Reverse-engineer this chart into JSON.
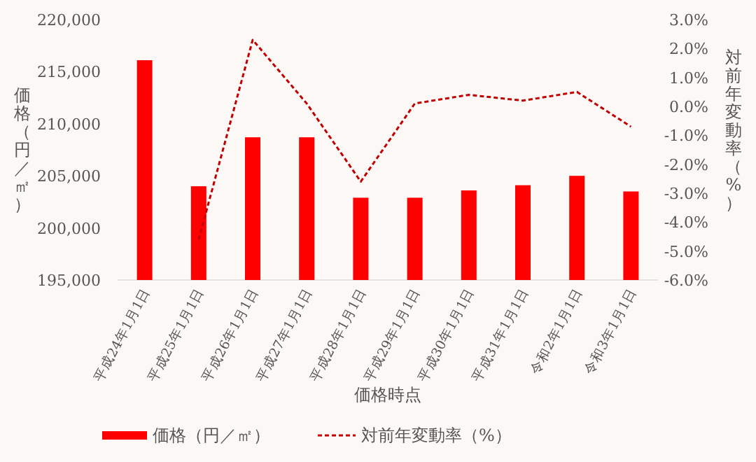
{
  "chart_data": {
    "type": "bar",
    "xlabel": "価格時点",
    "ylabel": "価格（円／㎡）",
    "y2label": "対前年変動率（%）",
    "categories": [
      "平成24年1月1日",
      "平成25年1月1日",
      "平成26年1月1日",
      "平成27年1月1日",
      "平成28年1月1日",
      "平成29年1月1日",
      "平成30年1月1日",
      "平成31年1月1日",
      "令和2年1月1日",
      "令和3年1月1日"
    ],
    "series": [
      {
        "name": "価格（円／㎡）",
        "color": "#ff0000",
        "values": [
          216100,
          204000,
          208700,
          208700,
          202900,
          202900,
          203600,
          204100,
          205000,
          203500
        ]
      },
      {
        "name": "対前年変動率（%）",
        "type": "line",
        "axis": "y2",
        "color": "#c00000",
        "line_style": "dashed",
        "values": [
          null,
          -4.6,
          2.3,
          0.1,
          -2.6,
          0.1,
          0.4,
          0.2,
          0.5,
          -0.7
        ]
      }
    ],
    "ylim": [
      195000,
      220000
    ],
    "yticks": [
      {
        "value": 195000,
        "label": "195,000"
      },
      {
        "value": 200000,
        "label": "200,000"
      },
      {
        "value": 205000,
        "label": "205,000"
      },
      {
        "value": 210000,
        "label": "210,000"
      },
      {
        "value": 215000,
        "label": "215,000"
      },
      {
        "value": 220000,
        "label": "220,000"
      }
    ],
    "y2lim": [
      -6,
      3
    ],
    "y2ticks": [
      {
        "value": -6,
        "label": "-6.0%"
      },
      {
        "value": -5,
        "label": "-5.0%"
      },
      {
        "value": -4,
        "label": "-4.0%"
      },
      {
        "value": -3,
        "label": "-3.0%"
      },
      {
        "value": -2,
        "label": "-2.0%"
      },
      {
        "value": -1,
        "label": "-1.0%"
      },
      {
        "value": 0,
        "label": "0.0%"
      },
      {
        "value": 1,
        "label": "1.0%"
      },
      {
        "value": 2,
        "label": "2.0%"
      },
      {
        "value": 3,
        "label": "3.0%"
      }
    ],
    "legend": "bottom"
  }
}
